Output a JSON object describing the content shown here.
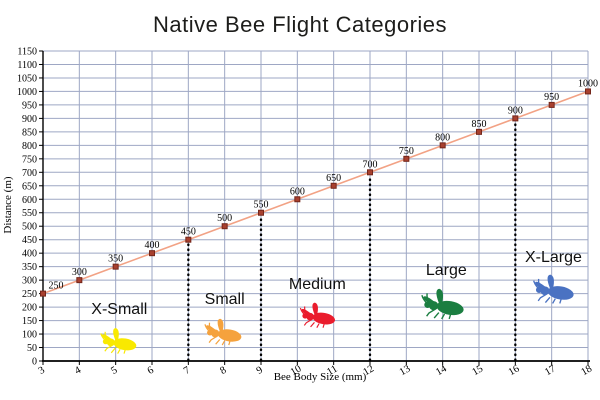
{
  "chart_data": {
    "type": "line",
    "title": "Native Bee Flight Categories",
    "xlabel": "Bee Body Size (mm)",
    "ylabel": "Distance (m)",
    "x": [
      3,
      4,
      5,
      6,
      7,
      8,
      9,
      10,
      11,
      12,
      13,
      14,
      15,
      16,
      17,
      18
    ],
    "y": [
      250,
      300,
      350,
      400,
      450,
      500,
      550,
      600,
      650,
      700,
      750,
      800,
      850,
      900,
      950,
      1000
    ],
    "point_labels": [
      "250",
      "300",
      "350",
      "400",
      "450",
      "500",
      "550",
      "600",
      "650",
      "700",
      "750",
      "800",
      "850",
      "900",
      "950",
      "1000"
    ],
    "xlim": [
      3,
      18
    ],
    "ylim": [
      0,
      1150
    ],
    "x_ticks": [
      3,
      4,
      5,
      6,
      7,
      8,
      9,
      10,
      11,
      12,
      13,
      14,
      15,
      16,
      17,
      18
    ],
    "y_ticks": [
      0,
      50,
      100,
      150,
      200,
      250,
      300,
      350,
      400,
      450,
      500,
      550,
      600,
      650,
      700,
      750,
      800,
      850,
      900,
      950,
      1000,
      1050,
      1100,
      1150
    ],
    "grid": true,
    "legend": "none",
    "colors": {
      "line": "#f2a285",
      "marker_fill": "#a8402f",
      "marker_border": "#74261a",
      "grid": "#9ea7c4",
      "axis": "#000000",
      "boundary_dots": "#000000",
      "text": "#000000"
    },
    "category_boundaries_mm": [
      7,
      9,
      12,
      16
    ],
    "categories": [
      {
        "label": "X-Small",
        "range_mm": [
          3,
          7
        ],
        "bee_color": "#f9e900",
        "bee_name": "bee-icon-x-small",
        "label_at": {
          "mm": 5.1,
          "m": 190
        },
        "bee_at": {
          "mm": 5.12,
          "m": 75
        },
        "bee_w": 40
      },
      {
        "label": "Small",
        "range_mm": [
          7,
          9
        ],
        "bee_color": "#f5a23d",
        "bee_name": "bee-icon-small",
        "label_at": {
          "mm": 8.0,
          "m": 226
        },
        "bee_at": {
          "mm": 8.0,
          "m": 108
        },
        "bee_w": 41
      },
      {
        "label": "Medium",
        "range_mm": [
          9,
          12
        ],
        "bee_color": "#ea1c2d",
        "bee_name": "bee-icon-medium",
        "label_at": {
          "mm": 10.55,
          "m": 282
        },
        "bee_at": {
          "mm": 10.6,
          "m": 170
        },
        "bee_w": 39
      },
      {
        "label": "Large",
        "range_mm": [
          12,
          16
        ],
        "bee_color": "#1b7e41",
        "bee_name": "bee-icon-large",
        "label_at": {
          "mm": 14.1,
          "m": 334
        },
        "bee_at": {
          "mm": 14.05,
          "m": 212
        },
        "bee_w": 47
      },
      {
        "label": "X-Large",
        "range_mm": [
          16,
          18
        ],
        "bee_color": "#4a72c2",
        "bee_name": "bee-icon-x-large",
        "label_at": {
          "mm": 17.05,
          "m": 382
        },
        "bee_at": {
          "mm": 17.1,
          "m": 267
        },
        "bee_w": 45
      }
    ]
  }
}
